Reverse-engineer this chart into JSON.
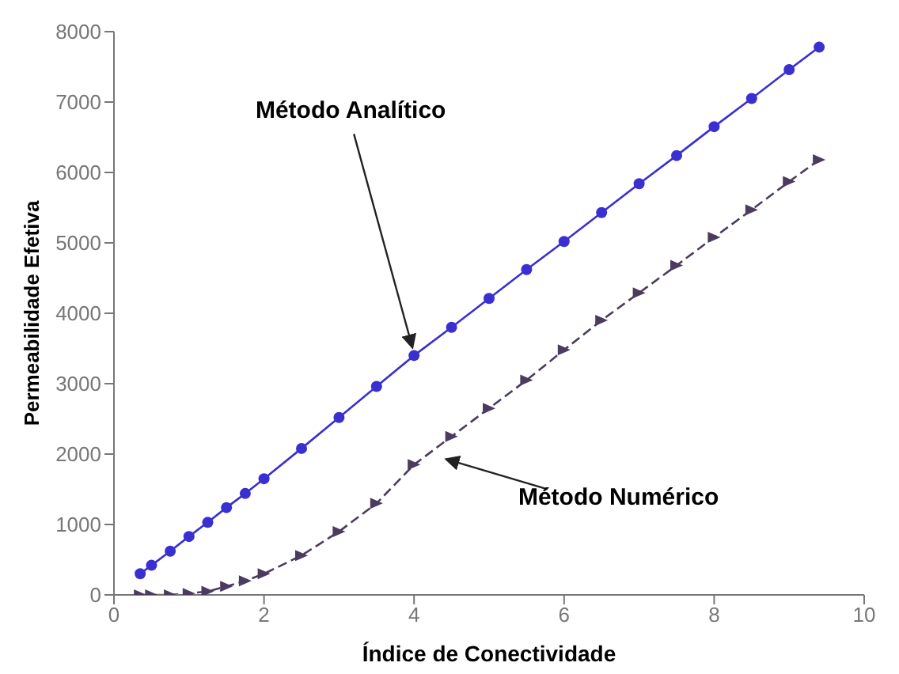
{
  "chart_data": {
    "type": "line",
    "xlabel": "Índice de Conectividade",
    "ylabel": "Permeabilidade Efetiva",
    "xlim": [
      0,
      10
    ],
    "xticks": [
      0,
      2,
      4,
      6,
      8,
      10
    ],
    "ylim": [
      0,
      8000
    ],
    "yticks": [
      0,
      1000,
      2000,
      3000,
      4000,
      5000,
      6000,
      7000,
      8000
    ],
    "grid": false,
    "legend": false,
    "x": [
      0.35,
      0.5,
      0.75,
      1,
      1.25,
      1.5,
      1.75,
      2,
      2.5,
      3,
      3.5,
      4,
      4.5,
      5,
      5.5,
      6,
      6.5,
      7,
      7.5,
      8,
      8.5,
      9,
      9.4
    ],
    "series": [
      {
        "color": "#3a2fd0",
        "marker": "circle",
        "line_style": "solid",
        "values": [
          300,
          420,
          620,
          830,
          1030,
          1240,
          1440,
          1650,
          2080,
          2520,
          2960,
          3400,
          3800,
          4210,
          4620,
          5020,
          5430,
          5840,
          6240,
          6650,
          7050,
          7460,
          7780
        ]
      },
      {
        "color": "#4b3b5e",
        "marker": "triangle",
        "line_style": "dashed",
        "values": [
          0,
          0,
          0,
          20,
          50,
          120,
          200,
          300,
          560,
          900,
          1300,
          1850,
          2250,
          2650,
          3050,
          3480,
          3900,
          4290,
          4680,
          5080,
          5470,
          5870,
          6180
        ]
      }
    ],
    "annotations": [
      {
        "text": "Método Analítico",
        "x": 4,
        "y": 3400
      },
      {
        "text": "Método Numérico",
        "x": 4.3,
        "y": 1950
      }
    ]
  }
}
